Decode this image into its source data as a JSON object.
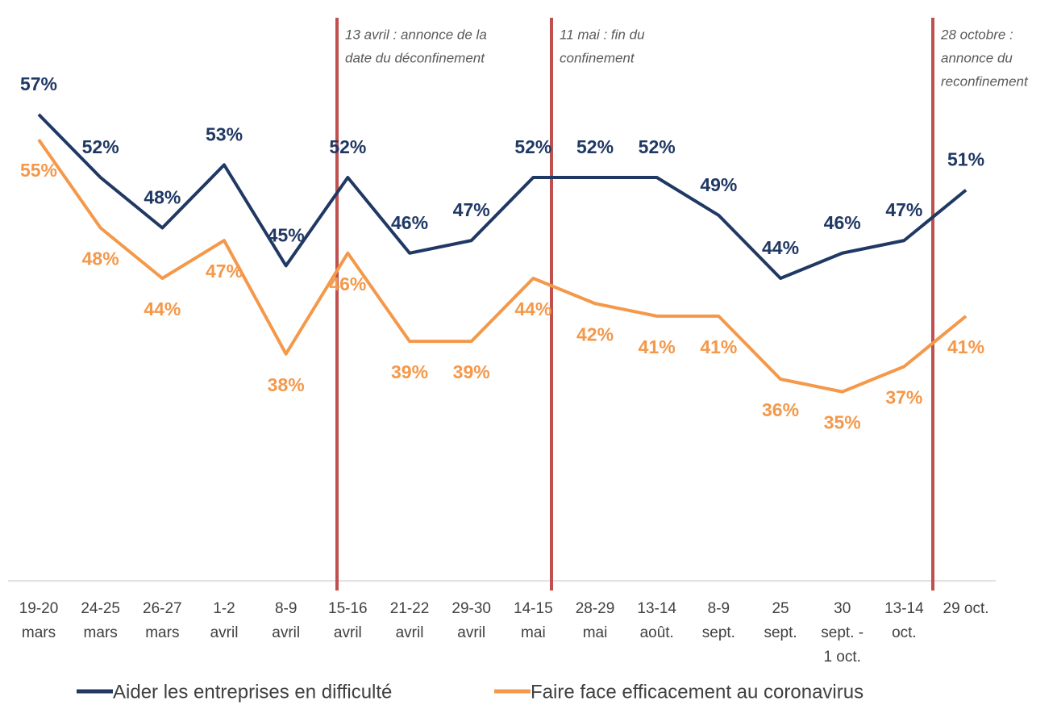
{
  "chart_data": {
    "type": "line",
    "categories": [
      [
        "19-20",
        "mars"
      ],
      [
        "24-25",
        "mars"
      ],
      [
        "26-27",
        "mars"
      ],
      [
        "1-2",
        "avril"
      ],
      [
        "8-9",
        "avril"
      ],
      [
        "15-16",
        "avril"
      ],
      [
        "21-22",
        "avril"
      ],
      [
        "29-30",
        "avril"
      ],
      [
        "14-15",
        "mai"
      ],
      [
        "28-29",
        "mai"
      ],
      [
        "13-14",
        "août."
      ],
      [
        "8-9",
        "sept."
      ],
      [
        "25",
        "sept."
      ],
      [
        "30",
        "sept. -",
        "1 oct."
      ],
      [
        "13-14",
        "oct."
      ],
      [
        "29 oct."
      ]
    ],
    "series": [
      {
        "name": "Aider les entreprises en difficulté",
        "color": "#203864",
        "values": [
          57,
          52,
          48,
          53,
          45,
          52,
          46,
          47,
          52,
          52,
          52,
          49,
          44,
          46,
          47,
          51
        ],
        "value_labels": [
          "57%",
          "52%",
          "48%",
          "53%",
          "45%",
          "52%",
          "46%",
          "47%",
          "52%",
          "52%",
          "52%",
          "49%",
          "44%",
          "46%",
          "47%",
          "51%"
        ]
      },
      {
        "name": "Faire face efficacement au coronavirus",
        "color": "#f4984a",
        "values": [
          55,
          48,
          44,
          47,
          38,
          46,
          39,
          39,
          44,
          42,
          41,
          41,
          36,
          35,
          37,
          41
        ],
        "value_labels": [
          "55%",
          "48%",
          "44%",
          "47%",
          "38%",
          "46%",
          "39%",
          "39%",
          "44%",
          "42%",
          "41%",
          "41%",
          "36%",
          "35%",
          "37%",
          "41%"
        ]
      }
    ],
    "ylim": [
      20,
      60
    ],
    "annotations": [
      {
        "text": [
          "13 avril : annonce de la",
          "date du déconfinement"
        ],
        "color": "#c0504d"
      },
      {
        "text": [
          "11 mai : fin du",
          "confinement"
        ],
        "color": "#c0504d"
      },
      {
        "text": [
          "28 octobre :",
          "annonce du",
          "reconfinement"
        ],
        "color": "#c0504d"
      }
    ]
  }
}
